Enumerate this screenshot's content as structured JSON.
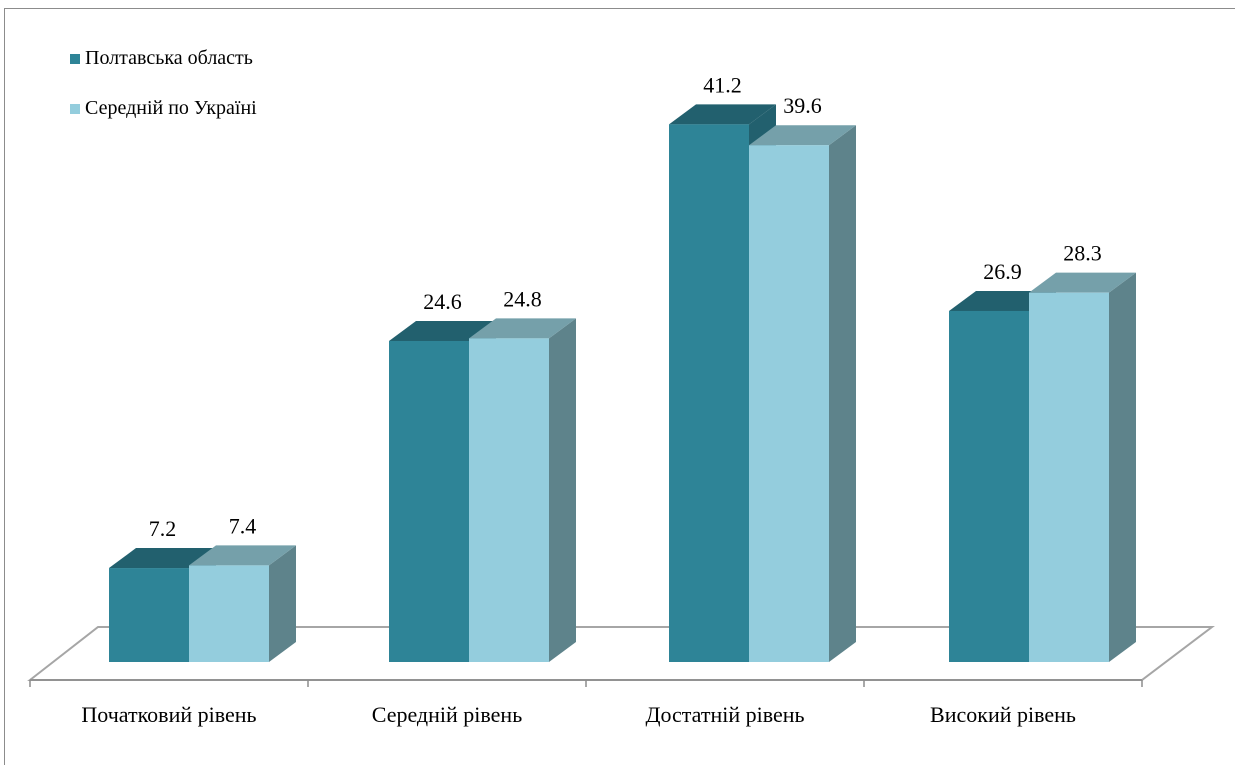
{
  "chart_data": {
    "type": "bar",
    "categories": [
      "Початковий рівень",
      "Середній рівень",
      "Достатній рівень",
      "Високий рівень"
    ],
    "series": [
      {
        "name": "Полтавська область",
        "values": [
          7.2,
          24.6,
          41.2,
          26.9
        ],
        "color": "#2e8497"
      },
      {
        "name": "Середній по Україні",
        "values": [
          7.4,
          24.8,
          39.6,
          28.3
        ],
        "color": "#94cddd"
      }
    ],
    "data_labels": true,
    "legend_position": "top-left",
    "grid": false,
    "style": "3d-clustered-column"
  }
}
